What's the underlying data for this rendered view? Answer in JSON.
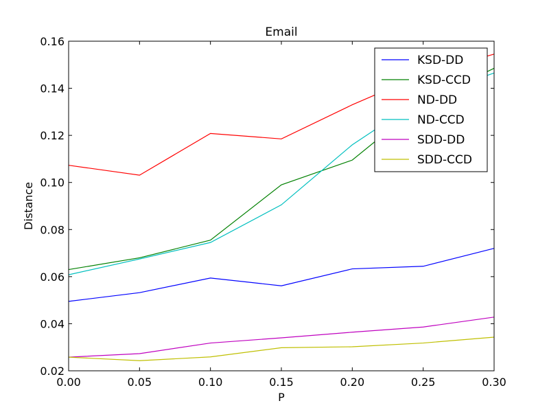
{
  "chart_data": {
    "type": "line",
    "title": "Email",
    "xlabel": "P",
    "ylabel": "Distance",
    "xlim": [
      0.0,
      0.3
    ],
    "ylim": [
      0.02,
      0.16
    ],
    "x": [
      0.0,
      0.05,
      0.1,
      0.15,
      0.2,
      0.25,
      0.3
    ],
    "x_ticks": [
      "0.00",
      "0.05",
      "0.10",
      "0.15",
      "0.20",
      "0.25",
      "0.30"
    ],
    "y_ticks": [
      "0.02",
      "0.04",
      "0.06",
      "0.08",
      "0.10",
      "0.12",
      "0.14",
      "0.16"
    ],
    "grid": false,
    "legend_position": "top-right",
    "series": [
      {
        "name": "KSD-DD",
        "color": "#0000ff",
        "values": [
          0.0495,
          0.0532,
          0.0594,
          0.0561,
          0.0633,
          0.0644,
          0.072
        ]
      },
      {
        "name": "KSD-CCD",
        "color": "#008000",
        "values": [
          0.063,
          0.068,
          0.0755,
          0.099,
          0.1095,
          0.134,
          0.1485
        ]
      },
      {
        "name": "ND-DD",
        "color": "#ff0000",
        "values": [
          0.1073,
          0.1031,
          0.1208,
          0.1185,
          0.133,
          0.146,
          0.1545
        ]
      },
      {
        "name": "ND-CCD",
        "color": "#00bfbf",
        "values": [
          0.0608,
          0.0675,
          0.0745,
          0.0905,
          0.116,
          0.136,
          0.1465
        ]
      },
      {
        "name": "SDD-DD",
        "color": "#bf00bf",
        "values": [
          0.0258,
          0.0273,
          0.0318,
          0.034,
          0.0364,
          0.0386,
          0.0428
        ]
      },
      {
        "name": "SDD-CCD",
        "color": "#bfbf00",
        "values": [
          0.0258,
          0.0243,
          0.0259,
          0.0298,
          0.0302,
          0.0318,
          0.0343
        ]
      }
    ]
  }
}
